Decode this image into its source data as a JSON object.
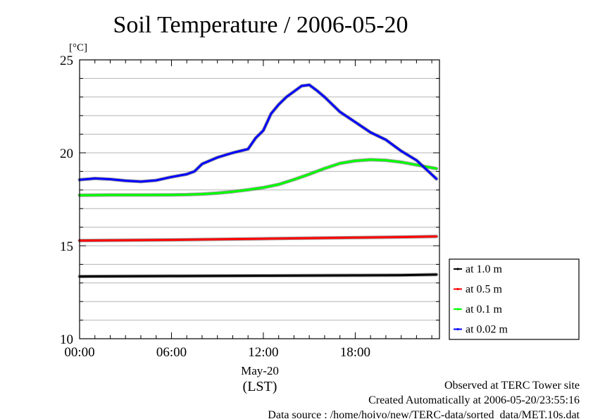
{
  "header": {
    "title": "Soil Temperature / 2006-05-20"
  },
  "footer": {
    "observed": "Observed at TERC Tower site",
    "created": "Created Automatically at 2006-05-20/23:55:16",
    "source": "Data source : /home/hoivo/new/TERC-data/sorted  data/MET.10s.dat"
  },
  "chart_data": {
    "type": "line",
    "title": "Soil Temperature / 2006-05-20",
    "ylabel": "[°C]",
    "xlabel": "(LST)",
    "x_date_label": "May-20",
    "xlim": [
      0,
      23.5
    ],
    "ylim": [
      10,
      25
    ],
    "x_ticks": [
      0,
      6,
      12,
      18
    ],
    "x_tick_labels": [
      "00:00",
      "06:00",
      "12:00",
      "18:00"
    ],
    "y_ticks": [
      10,
      15,
      20,
      25
    ],
    "y_tick_labels": [
      "10",
      "15",
      "20",
      "25"
    ],
    "y_minor_step": 1,
    "grid": true,
    "legend_position": "right-bottom",
    "series": [
      {
        "name": "at 1.0 m",
        "color": "#000000",
        "x": [
          0,
          6,
          12,
          18,
          21,
          23.3
        ],
        "y": [
          13.35,
          13.37,
          13.39,
          13.41,
          13.42,
          13.45
        ]
      },
      {
        "name": "at 0.5 m",
        "color": "#ff0000",
        "x": [
          0,
          6,
          12,
          18,
          21,
          23.3
        ],
        "y": [
          15.28,
          15.32,
          15.38,
          15.44,
          15.47,
          15.5
        ]
      },
      {
        "name": "at 0.1 m",
        "color": "#00ff00",
        "x": [
          0,
          2,
          4,
          6,
          7,
          8,
          9,
          10,
          11,
          12,
          13,
          14,
          15,
          16,
          17,
          18,
          19,
          20,
          21,
          22,
          23.3
        ],
        "y": [
          17.72,
          17.73,
          17.73,
          17.74,
          17.75,
          17.78,
          17.83,
          17.91,
          18.01,
          18.13,
          18.3,
          18.56,
          18.85,
          19.16,
          19.43,
          19.57,
          19.63,
          19.6,
          19.5,
          19.35,
          19.15
        ]
      },
      {
        "name": "at 0.02 m",
        "color": "#0000ff",
        "x": [
          0,
          1,
          2,
          3,
          4,
          5,
          6,
          7,
          7.5,
          8,
          9,
          10,
          11,
          11.5,
          12,
          12.5,
          13,
          13.5,
          14,
          14.5,
          15,
          15.5,
          16,
          17,
          18,
          19,
          20,
          21,
          22,
          23.3
        ],
        "y": [
          18.55,
          18.62,
          18.58,
          18.5,
          18.45,
          18.52,
          18.7,
          18.85,
          19.0,
          19.4,
          19.75,
          20.0,
          20.2,
          20.8,
          21.2,
          22.1,
          22.6,
          23.0,
          23.3,
          23.6,
          23.65,
          23.35,
          23.0,
          22.2,
          21.65,
          21.1,
          20.7,
          20.1,
          19.6,
          18.6
        ]
      }
    ]
  }
}
